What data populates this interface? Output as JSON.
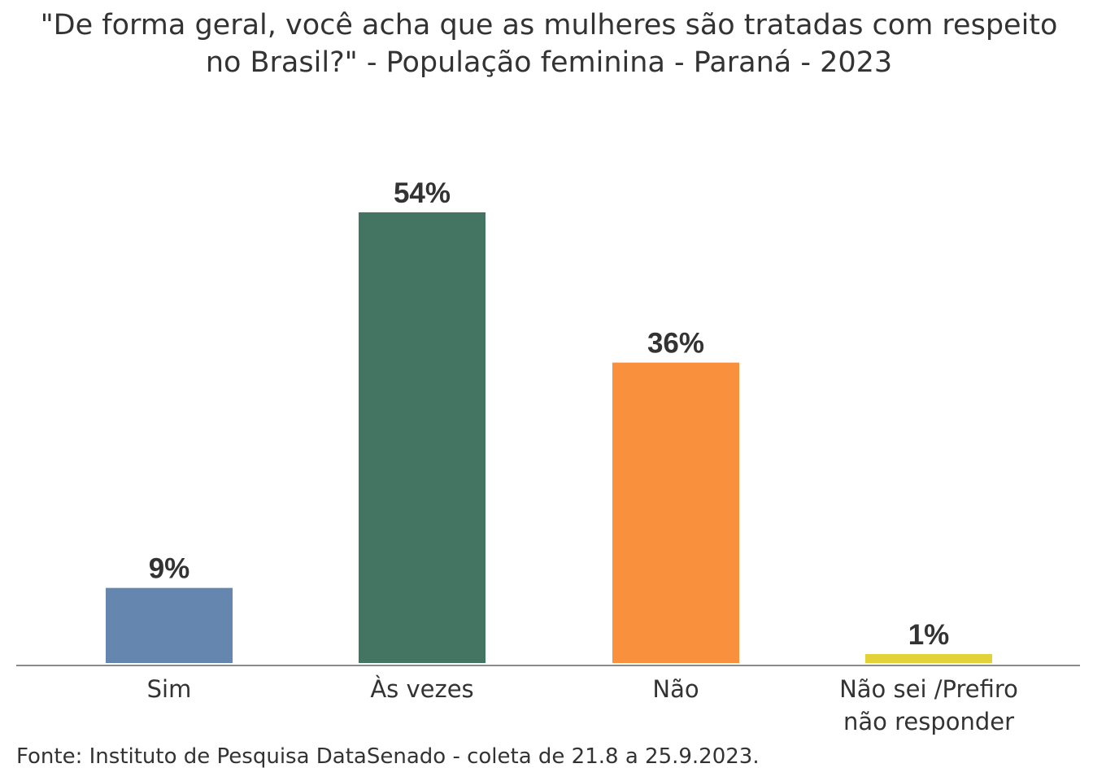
{
  "chart_data": {
    "type": "bar",
    "title": "\"De forma geral, você acha que as mulheres são tratadas com respeito no Brasil?\" - População feminina - Paraná - 2023",
    "categories": [
      "Sim",
      "Às vezes",
      "Não",
      "Não sei /Prefiro não responder"
    ],
    "values": [
      9,
      54,
      36,
      1
    ],
    "value_labels": [
      "9%",
      "54%",
      "36%",
      "1%"
    ],
    "colors": [
      "#6586AF",
      "#447562",
      "#F8903D",
      "#E2D237"
    ],
    "unit": "%",
    "ylim": [
      0,
      54
    ],
    "grid": false,
    "legend": "none"
  },
  "source": "Fonte: Instituto de Pesquisa DataSenado - coleta de 21.8 a 25.9.2023."
}
